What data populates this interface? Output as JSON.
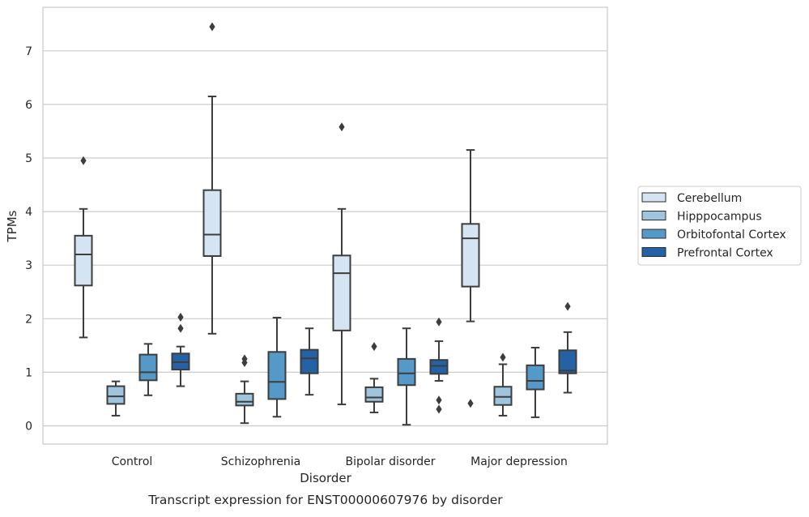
{
  "chart_data": {
    "type": "boxplot",
    "title": "Transcript expression for ENST00000607976 by disorder",
    "xlabel": "Disorder",
    "ylabel": "TPMs",
    "ylim": [
      -0.32,
      7.82
    ],
    "yticks": [
      0,
      1,
      2,
      3,
      4,
      5,
      6,
      7
    ],
    "grid": "horizontal",
    "legend_position": "right",
    "categories": [
      "Control",
      "Schizophrenia",
      "Bipolar disorder",
      "Major depression"
    ],
    "series": [
      {
        "name": "Cerebellum",
        "color": "#d4e4f3",
        "boxes": [
          {
            "whislo": 1.65,
            "q1": 2.62,
            "med": 3.2,
            "q3": 3.55,
            "whishi": 4.05,
            "fliers": [
              4.95
            ]
          },
          {
            "whislo": 1.72,
            "q1": 3.17,
            "med": 3.57,
            "q3": 4.4,
            "whishi": 6.15,
            "fliers": [
              7.45
            ]
          },
          {
            "whislo": 0.4,
            "q1": 1.78,
            "med": 2.85,
            "q3": 3.18,
            "whishi": 4.05,
            "fliers": [
              5.58
            ]
          },
          {
            "whislo": 1.95,
            "q1": 2.6,
            "med": 3.5,
            "q3": 3.77,
            "whishi": 5.15,
            "fliers": [
              0.42
            ]
          }
        ]
      },
      {
        "name": "Hipppocampus",
        "color": "#9ec4de",
        "boxes": [
          {
            "whislo": 0.19,
            "q1": 0.41,
            "med": 0.55,
            "q3": 0.74,
            "whishi": 0.83,
            "fliers": []
          },
          {
            "whislo": 0.05,
            "q1": 0.38,
            "med": 0.45,
            "q3": 0.6,
            "whishi": 0.83,
            "fliers": [
              1.18,
              1.25
            ]
          },
          {
            "whislo": 0.25,
            "q1": 0.45,
            "med": 0.53,
            "q3": 0.72,
            "whishi": 0.88,
            "fliers": [
              1.48
            ]
          },
          {
            "whislo": 0.19,
            "q1": 0.39,
            "med": 0.54,
            "q3": 0.73,
            "whishi": 1.15,
            "fliers": [
              1.28
            ]
          }
        ]
      },
      {
        "name": "Orbitofontal Cortex",
        "color": "#5499c8",
        "boxes": [
          {
            "whislo": 0.57,
            "q1": 0.85,
            "med": 1.0,
            "q3": 1.33,
            "whishi": 1.53,
            "fliers": []
          },
          {
            "whislo": 0.17,
            "q1": 0.5,
            "med": 0.82,
            "q3": 1.38,
            "whishi": 2.02,
            "fliers": []
          },
          {
            "whislo": 0.02,
            "q1": 0.76,
            "med": 0.98,
            "q3": 1.25,
            "whishi": 1.82,
            "fliers": []
          },
          {
            "whislo": 0.16,
            "q1": 0.68,
            "med": 0.84,
            "q3": 1.13,
            "whishi": 1.46,
            "fliers": []
          }
        ]
      },
      {
        "name": "Prefrontal Cortex",
        "color": "#2462a5",
        "boxes": [
          {
            "whislo": 0.74,
            "q1": 1.05,
            "med": 1.19,
            "q3": 1.35,
            "whishi": 1.48,
            "fliers": [
              1.82,
              2.03
            ]
          },
          {
            "whislo": 0.58,
            "q1": 0.98,
            "med": 1.26,
            "q3": 1.42,
            "whishi": 1.82,
            "fliers": []
          },
          {
            "whislo": 0.84,
            "q1": 0.97,
            "med": 1.12,
            "q3": 1.23,
            "whishi": 1.58,
            "fliers": [
              0.31,
              0.48,
              1.94
            ]
          },
          {
            "whislo": 0.62,
            "q1": 0.98,
            "med": 1.03,
            "q3": 1.41,
            "whishi": 1.75,
            "fliers": [
              2.23
            ]
          }
        ]
      }
    ]
  }
}
